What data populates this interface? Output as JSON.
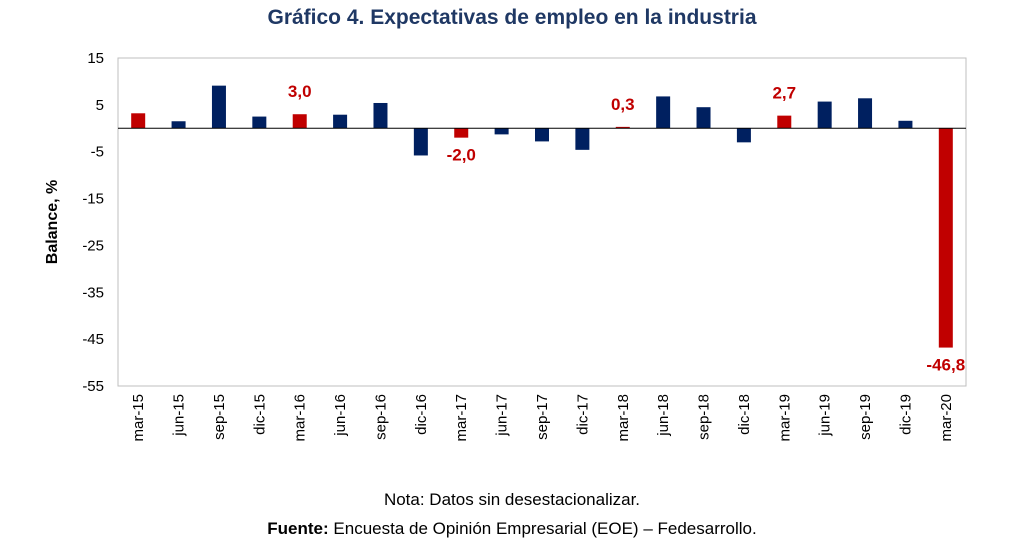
{
  "chart_data": {
    "type": "bar",
    "title": "Gráfico 4. Expectativas de empleo en la industria",
    "ylabel": "Balance, %",
    "xlabel": "",
    "ylim": [
      -55,
      15
    ],
    "yticks": [
      15,
      5,
      -5,
      -15,
      -25,
      -35,
      -45,
      -55
    ],
    "grid": false,
    "categories": [
      "mar-15",
      "jun-15",
      "sep-15",
      "dic-15",
      "mar-16",
      "jun-16",
      "sep-16",
      "dic-16",
      "mar-17",
      "jun-17",
      "sep-17",
      "dic-17",
      "mar-18",
      "jun-18",
      "sep-18",
      "dic-18",
      "mar-19",
      "jun-19",
      "sep-19",
      "dic-19",
      "mar-20"
    ],
    "values": [
      3.2,
      1.5,
      9.1,
      2.5,
      3.0,
      2.9,
      5.4,
      -5.8,
      -2.0,
      -1.3,
      -2.8,
      -4.6,
      0.3,
      6.8,
      4.5,
      -3.0,
      2.7,
      5.7,
      6.4,
      1.6,
      -46.8
    ],
    "highlighted": [
      0,
      4,
      8,
      12,
      16,
      20
    ],
    "data_labels": [
      {
        "index": 4,
        "text": "3,0"
      },
      {
        "index": 8,
        "text": "-2,0"
      },
      {
        "index": 12,
        "text": "0,3"
      },
      {
        "index": 16,
        "text": "2,7"
      },
      {
        "index": 20,
        "text": "-46,8"
      }
    ],
    "colors": {
      "default": "#002060",
      "highlight": "#c00000",
      "label": "#c00000"
    }
  },
  "footer": {
    "note": "Nota: Datos sin desestacionalizar.",
    "source_label": "Fuente:",
    "source_text": " Encuesta de Opinión Empresarial (EOE) – Fedesarrollo."
  }
}
